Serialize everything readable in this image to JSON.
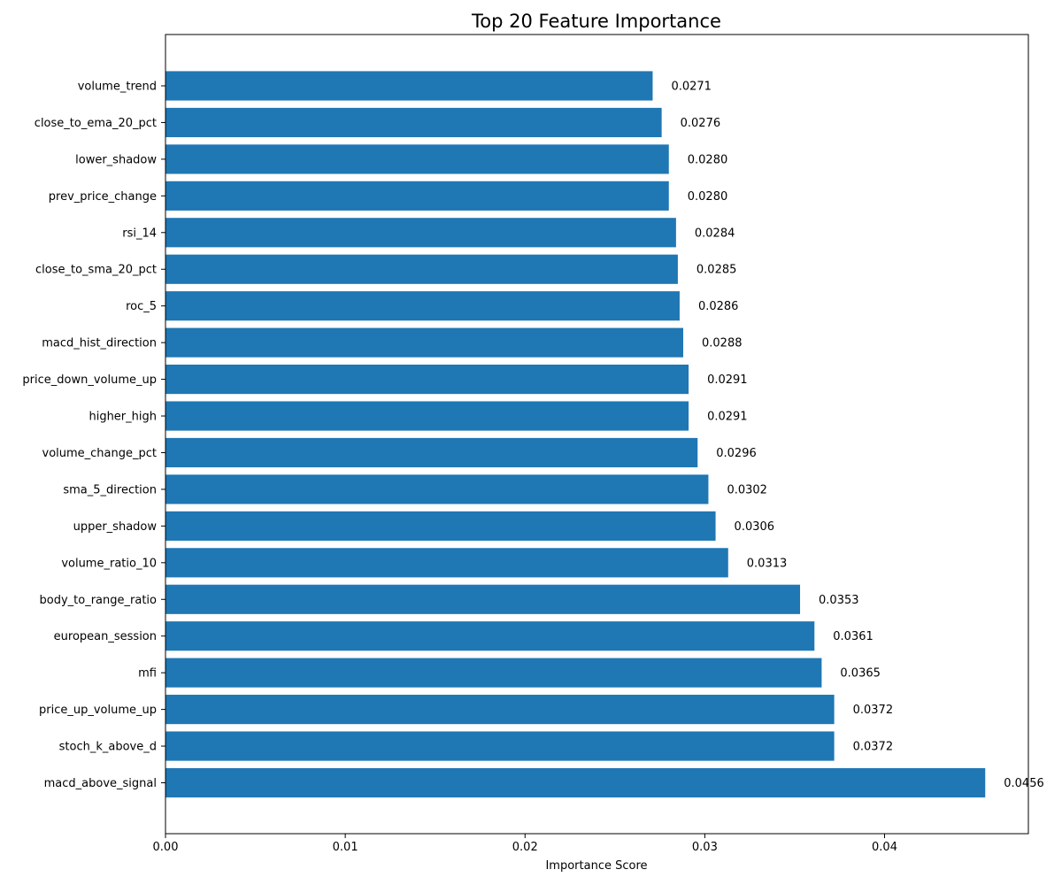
{
  "chart_data": {
    "type": "bar",
    "orientation": "horizontal",
    "title": "Top 20 Feature Importance",
    "xlabel": "Importance Score",
    "ylabel": "",
    "xlim": [
      0,
      0.048
    ],
    "xticks": [
      0.0,
      0.01,
      0.02,
      0.03,
      0.04
    ],
    "xtick_labels": [
      "0.00",
      "0.01",
      "0.02",
      "0.03",
      "0.04"
    ],
    "grid": false,
    "bar_color": "#1f77b4",
    "categories": [
      "volume_trend",
      "close_to_ema_20_pct",
      "lower_shadow",
      "prev_price_change",
      "rsi_14",
      "close_to_sma_20_pct",
      "roc_5",
      "macd_hist_direction",
      "price_down_volume_up",
      "higher_high",
      "volume_change_pct",
      "sma_5_direction",
      "upper_shadow",
      "volume_ratio_10",
      "body_to_range_ratio",
      "european_session",
      "mfi",
      "price_up_volume_up",
      "stoch_k_above_d",
      "macd_above_signal"
    ],
    "values": [
      0.0271,
      0.0276,
      0.028,
      0.028,
      0.0284,
      0.0285,
      0.0286,
      0.0288,
      0.0291,
      0.0291,
      0.0296,
      0.0302,
      0.0306,
      0.0313,
      0.0353,
      0.0361,
      0.0365,
      0.0372,
      0.0372,
      0.0456
    ],
    "value_labels": [
      "0.0271",
      "0.0276",
      "0.0280",
      "0.0280",
      "0.0284",
      "0.0285",
      "0.0286",
      "0.0288",
      "0.0291",
      "0.0291",
      "0.0296",
      "0.0302",
      "0.0306",
      "0.0313",
      "0.0353",
      "0.0361",
      "0.0365",
      "0.0372",
      "0.0372",
      "0.0456"
    ]
  }
}
